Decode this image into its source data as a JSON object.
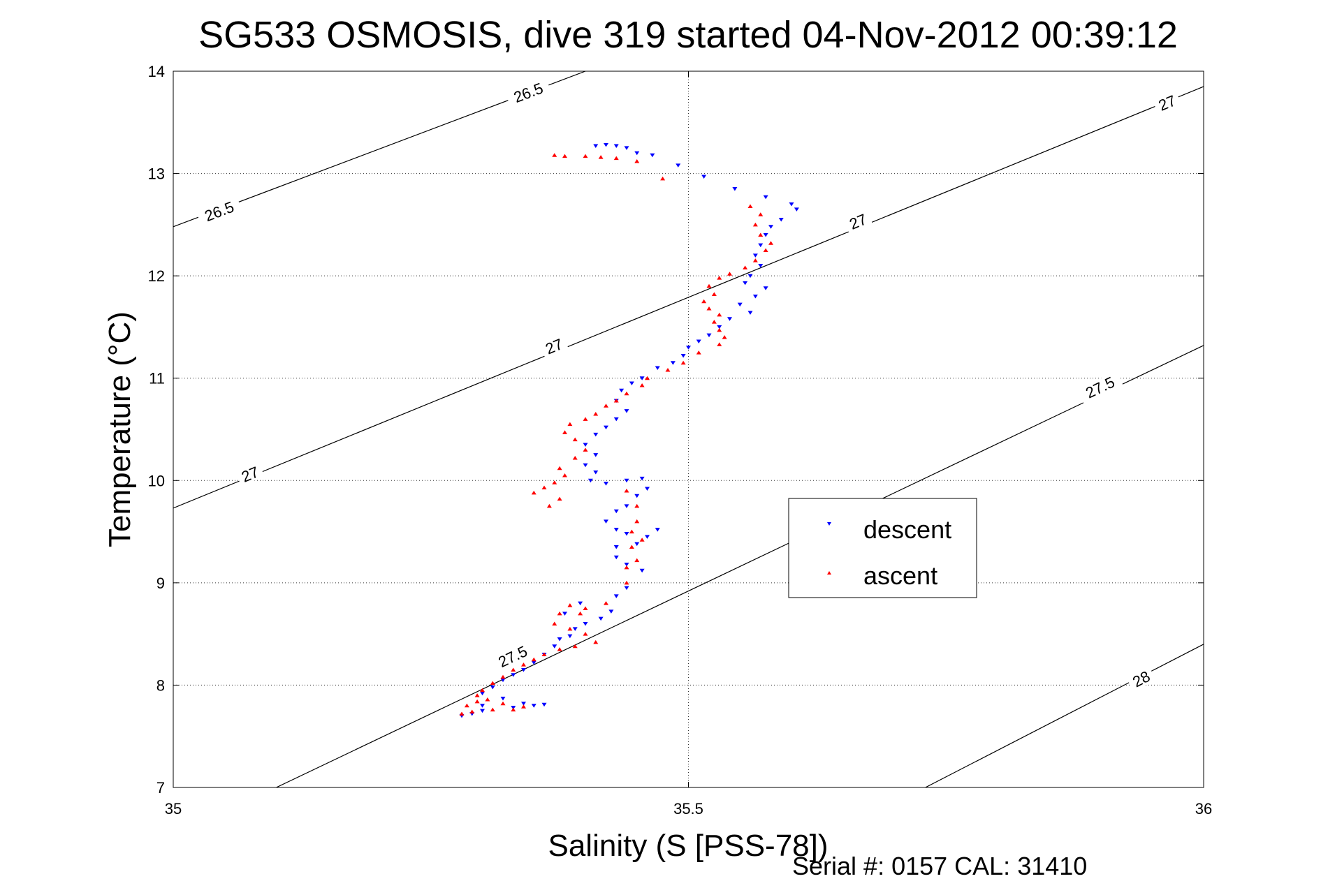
{
  "chart_data": {
    "type": "scatter",
    "title": "SG533 OSMOSIS, dive 319 started 04-Nov-2012 00:39:12",
    "xlabel": "Salinity (S [PSS-78])",
    "ylabel": "Temperature (°C)",
    "footer": "Serial #: 0157  CAL: 31410",
    "xlim": [
      35,
      36
    ],
    "ylim": [
      7,
      14
    ],
    "xticks": [
      {
        "value": 35,
        "label": "35"
      },
      {
        "value": 35.5,
        "label": "35.5"
      },
      {
        "value": 36,
        "label": "36"
      }
    ],
    "yticks": [
      {
        "value": 7,
        "label": "7"
      },
      {
        "value": 8,
        "label": "8"
      },
      {
        "value": 9,
        "label": "9"
      },
      {
        "value": 10,
        "label": "10"
      },
      {
        "value": 11,
        "label": "11"
      },
      {
        "value": 12,
        "label": "12"
      },
      {
        "value": 13,
        "label": "13"
      },
      {
        "value": 14,
        "label": "14"
      }
    ],
    "grid": true,
    "legend_position": "lower-right",
    "contours": [
      {
        "level": "26.5",
        "points": [
          [
            35.0,
            12.48
          ],
          [
            35.4,
            14.0
          ]
        ],
        "labels": [
          [
            35.045,
            12.62
          ],
          [
            35.345,
            13.78
          ]
        ]
      },
      {
        "level": "27",
        "points": [
          [
            35.0,
            9.73
          ],
          [
            36.0,
            13.85
          ]
        ],
        "labels": [
          [
            35.075,
            10.05
          ],
          [
            35.37,
            11.3
          ],
          [
            35.665,
            12.52
          ],
          [
            35.965,
            13.68
          ]
        ]
      },
      {
        "level": "27.5",
        "points": [
          [
            35.1,
            7.0
          ],
          [
            36.0,
            11.32
          ]
        ],
        "labels": [
          [
            35.33,
            8.27
          ],
          [
            35.9,
            10.9
          ]
        ]
      },
      {
        "level": "28",
        "points": [
          [
            35.73,
            7.0
          ],
          [
            36.0,
            8.4
          ]
        ],
        "labels": [
          [
            35.94,
            8.05
          ]
        ]
      }
    ],
    "series": [
      {
        "name": "descent",
        "color": "#0000ff",
        "marker": "triangle-down",
        "points": [
          [
            35.41,
            13.27
          ],
          [
            35.42,
            13.28
          ],
          [
            35.43,
            13.27
          ],
          [
            35.44,
            13.25
          ],
          [
            35.45,
            13.2
          ],
          [
            35.465,
            13.18
          ],
          [
            35.49,
            13.08
          ],
          [
            35.515,
            12.97
          ],
          [
            35.545,
            12.85
          ],
          [
            35.575,
            12.77
          ],
          [
            35.6,
            12.7
          ],
          [
            35.605,
            12.65
          ],
          [
            35.59,
            12.55
          ],
          [
            35.58,
            12.48
          ],
          [
            35.575,
            12.4
          ],
          [
            35.57,
            12.3
          ],
          [
            35.565,
            12.2
          ],
          [
            35.57,
            12.1
          ],
          [
            35.56,
            12.0
          ],
          [
            35.555,
            11.93
          ],
          [
            35.575,
            11.88
          ],
          [
            35.565,
            11.8
          ],
          [
            35.55,
            11.72
          ],
          [
            35.56,
            11.64
          ],
          [
            35.54,
            11.58
          ],
          [
            35.53,
            11.5
          ],
          [
            35.52,
            11.42
          ],
          [
            35.51,
            11.36
          ],
          [
            35.5,
            11.3
          ],
          [
            35.495,
            11.22
          ],
          [
            35.485,
            11.15
          ],
          [
            35.47,
            11.1
          ],
          [
            35.455,
            11.0
          ],
          [
            35.445,
            10.95
          ],
          [
            35.435,
            10.88
          ],
          [
            35.43,
            10.78
          ],
          [
            35.44,
            10.68
          ],
          [
            35.43,
            10.6
          ],
          [
            35.42,
            10.52
          ],
          [
            35.41,
            10.45
          ],
          [
            35.4,
            10.35
          ],
          [
            35.41,
            10.25
          ],
          [
            35.4,
            10.15
          ],
          [
            35.41,
            10.08
          ],
          [
            35.405,
            10.0
          ],
          [
            35.42,
            9.97
          ],
          [
            35.44,
            10.0
          ],
          [
            35.455,
            10.02
          ],
          [
            35.46,
            9.92
          ],
          [
            35.45,
            9.85
          ],
          [
            35.44,
            9.75
          ],
          [
            35.43,
            9.7
          ],
          [
            35.42,
            9.6
          ],
          [
            35.43,
            9.52
          ],
          [
            35.44,
            9.48
          ],
          [
            35.46,
            9.45
          ],
          [
            35.47,
            9.52
          ],
          [
            35.45,
            9.38
          ],
          [
            35.43,
            9.35
          ],
          [
            35.43,
            9.25
          ],
          [
            35.44,
            9.18
          ],
          [
            35.455,
            9.12
          ],
          [
            35.44,
            8.95
          ],
          [
            35.43,
            8.87
          ],
          [
            35.425,
            8.72
          ],
          [
            35.415,
            8.65
          ],
          [
            35.4,
            8.6
          ],
          [
            35.39,
            8.55
          ],
          [
            35.385,
            8.48
          ],
          [
            35.375,
            8.45
          ],
          [
            35.38,
            8.7
          ],
          [
            35.395,
            8.8
          ],
          [
            35.37,
            8.38
          ],
          [
            35.36,
            8.3
          ],
          [
            35.35,
            8.22
          ],
          [
            35.34,
            8.15
          ],
          [
            35.33,
            8.1
          ],
          [
            35.32,
            8.05
          ],
          [
            35.31,
            7.98
          ],
          [
            35.3,
            7.92
          ],
          [
            35.32,
            7.87
          ],
          [
            35.34,
            7.82
          ],
          [
            35.35,
            7.8
          ],
          [
            35.36,
            7.81
          ],
          [
            35.33,
            7.78
          ],
          [
            35.3,
            7.75
          ],
          [
            35.29,
            7.72
          ],
          [
            35.28,
            7.7
          ],
          [
            35.3,
            7.8
          ]
        ]
      },
      {
        "name": "ascent",
        "color": "#ff0000",
        "marker": "triangle-up",
        "points": [
          [
            35.37,
            13.18
          ],
          [
            35.38,
            13.17
          ],
          [
            35.4,
            13.17
          ],
          [
            35.415,
            13.16
          ],
          [
            35.43,
            13.15
          ],
          [
            35.45,
            13.12
          ],
          [
            35.475,
            12.95
          ],
          [
            35.56,
            12.68
          ],
          [
            35.57,
            12.6
          ],
          [
            35.565,
            12.5
          ],
          [
            35.57,
            12.4
          ],
          [
            35.58,
            12.32
          ],
          [
            35.575,
            12.25
          ],
          [
            35.565,
            12.15
          ],
          [
            35.555,
            12.08
          ],
          [
            35.54,
            12.02
          ],
          [
            35.53,
            11.98
          ],
          [
            35.52,
            11.9
          ],
          [
            35.525,
            11.82
          ],
          [
            35.515,
            11.75
          ],
          [
            35.52,
            11.68
          ],
          [
            35.53,
            11.62
          ],
          [
            35.525,
            11.55
          ],
          [
            35.53,
            11.47
          ],
          [
            35.535,
            11.4
          ],
          [
            35.53,
            11.33
          ],
          [
            35.51,
            11.25
          ],
          [
            35.495,
            11.15
          ],
          [
            35.48,
            11.08
          ],
          [
            35.46,
            11.0
          ],
          [
            35.455,
            10.93
          ],
          [
            35.44,
            10.85
          ],
          [
            35.43,
            10.78
          ],
          [
            35.42,
            10.73
          ],
          [
            35.41,
            10.65
          ],
          [
            35.4,
            10.6
          ],
          [
            35.385,
            10.55
          ],
          [
            35.38,
            10.47
          ],
          [
            35.39,
            10.4
          ],
          [
            35.4,
            10.3
          ],
          [
            35.39,
            10.22
          ],
          [
            35.375,
            10.12
          ],
          [
            35.38,
            10.05
          ],
          [
            35.37,
            9.98
          ],
          [
            35.36,
            9.93
          ],
          [
            35.35,
            9.88
          ],
          [
            35.375,
            9.82
          ],
          [
            35.365,
            9.75
          ],
          [
            35.44,
            9.9
          ],
          [
            35.45,
            9.75
          ],
          [
            35.45,
            9.6
          ],
          [
            35.445,
            9.5
          ],
          [
            35.455,
            9.42
          ],
          [
            35.445,
            9.35
          ],
          [
            35.45,
            9.22
          ],
          [
            35.44,
            9.15
          ],
          [
            35.44,
            9.0
          ],
          [
            35.42,
            8.8
          ],
          [
            35.4,
            8.75
          ],
          [
            35.395,
            8.7
          ],
          [
            35.385,
            8.78
          ],
          [
            35.375,
            8.7
          ],
          [
            35.37,
            8.6
          ],
          [
            35.385,
            8.55
          ],
          [
            35.4,
            8.5
          ],
          [
            35.41,
            8.42
          ],
          [
            35.39,
            8.38
          ],
          [
            35.375,
            8.35
          ],
          [
            35.36,
            8.3
          ],
          [
            35.35,
            8.25
          ],
          [
            35.34,
            8.2
          ],
          [
            35.33,
            8.15
          ],
          [
            35.32,
            8.08
          ],
          [
            35.31,
            8.02
          ],
          [
            35.3,
            7.95
          ],
          [
            35.295,
            7.9
          ],
          [
            35.305,
            7.86
          ],
          [
            35.32,
            7.82
          ],
          [
            35.34,
            7.79
          ],
          [
            35.33,
            7.76
          ],
          [
            35.31,
            7.76
          ],
          [
            35.29,
            7.74
          ],
          [
            35.28,
            7.72
          ],
          [
            35.285,
            7.8
          ],
          [
            35.295,
            7.84
          ]
        ]
      }
    ]
  }
}
